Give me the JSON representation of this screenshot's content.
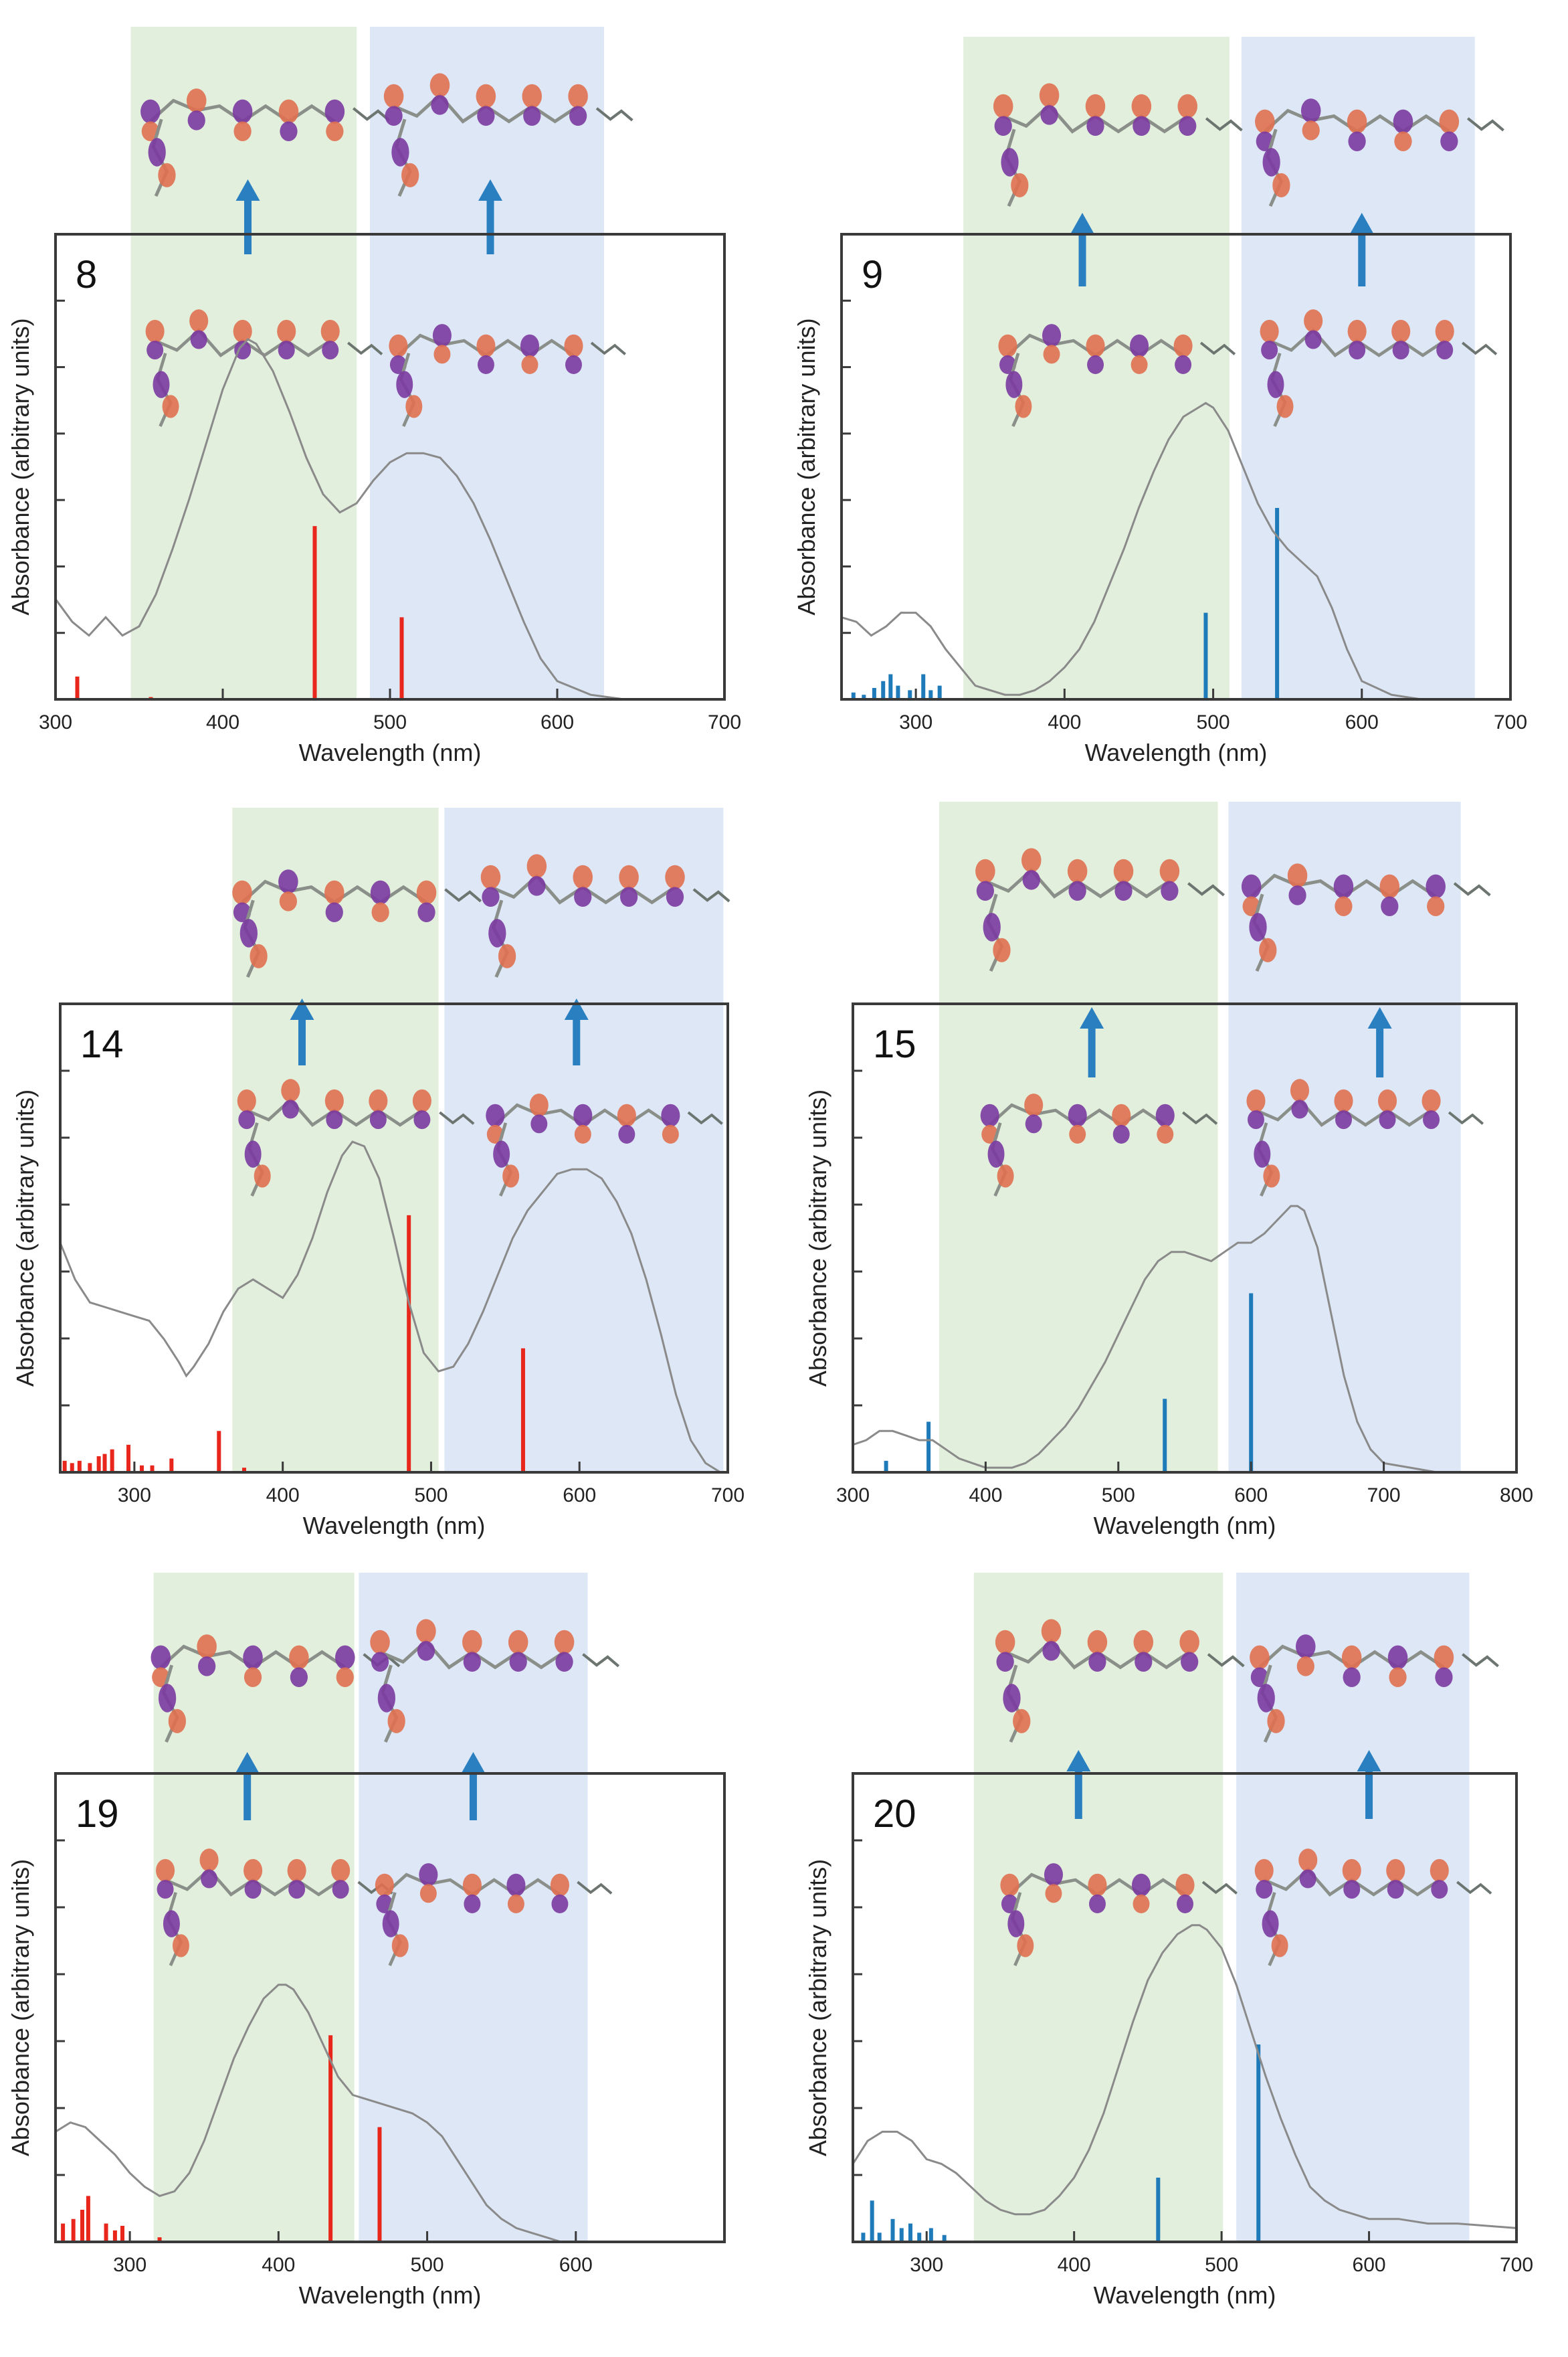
{
  "figure": {
    "description_name": "absorption-spectra-figure"
  },
  "colors": {
    "red_sticks": "#e8261c",
    "blue_sticks": "#1e7ab8",
    "curve": "#8a8a8a",
    "green_band": "#e2efdc",
    "blue_band": "#dde7f5",
    "arrow": "#2a7fc1",
    "orbital_orange": "#e07050",
    "orbital_purple": "#7a3aa0"
  },
  "chart_data": [
    {
      "type": "line",
      "label": "8",
      "xlabel": "Wavelength (nm)",
      "ylabel": "Absorbance (arbitrary units)",
      "xlim": [
        300,
        700
      ],
      "ylim": [
        0,
        1
      ],
      "xticks": [
        "300",
        "400",
        "500",
        "600",
        "700"
      ],
      "xtick_values": [
        300,
        400,
        500,
        600,
        700
      ],
      "stick_color": "red",
      "bands": [
        {
          "name": "green",
          "x0": 345,
          "x1": 480
        },
        {
          "name": "blue",
          "x0": 488,
          "x1": 628
        }
      ],
      "arrows": [
        415,
        560
      ],
      "curve": {
        "x": [
          300,
          310,
          320,
          330,
          340,
          350,
          360,
          370,
          380,
          390,
          400,
          410,
          415,
          420,
          430,
          440,
          450,
          460,
          470,
          480,
          490,
          500,
          510,
          520,
          530,
          540,
          550,
          560,
          570,
          580,
          590,
          600,
          620,
          640,
          660,
          680,
          700
        ],
        "y": [
          0.22,
          0.17,
          0.14,
          0.18,
          0.14,
          0.16,
          0.23,
          0.33,
          0.44,
          0.56,
          0.68,
          0.77,
          0.79,
          0.78,
          0.72,
          0.63,
          0.53,
          0.45,
          0.41,
          0.43,
          0.48,
          0.52,
          0.54,
          0.54,
          0.53,
          0.49,
          0.43,
          0.35,
          0.26,
          0.17,
          0.09,
          0.04,
          0.01,
          0.0,
          0.0,
          0.0,
          0.0
        ]
      },
      "sticks": [
        {
          "x": 313,
          "y": 0.05
        },
        {
          "x": 357,
          "y": 0.005
        },
        {
          "x": 455,
          "y": 0.38
        },
        {
          "x": 507,
          "y": 0.18
        }
      ]
    },
    {
      "type": "line",
      "label": "9",
      "xlabel": "Wavelength (nm)",
      "ylabel": "Absorbance (arbitrary units)",
      "xlim": [
        250,
        700
      ],
      "ylim": [
        0,
        1
      ],
      "xticks": [
        "300",
        "400",
        "500",
        "600",
        "700"
      ],
      "xtick_values": [
        300,
        400,
        500,
        600,
        700
      ],
      "stick_color": "blue",
      "bands": [
        {
          "name": "green",
          "x0": 332,
          "x1": 511
        },
        {
          "name": "blue",
          "x0": 519,
          "x1": 676
        }
      ],
      "arrows": [
        412,
        600
      ],
      "curve": {
        "x": [
          250,
          260,
          270,
          280,
          290,
          300,
          310,
          320,
          330,
          340,
          350,
          360,
          370,
          380,
          390,
          400,
          410,
          420,
          430,
          440,
          450,
          460,
          470,
          480,
          490,
          495,
          500,
          510,
          520,
          530,
          540,
          550,
          560,
          570,
          580,
          590,
          600,
          620,
          640,
          660,
          700
        ],
        "y": [
          0.18,
          0.17,
          0.14,
          0.16,
          0.19,
          0.19,
          0.16,
          0.11,
          0.07,
          0.03,
          0.02,
          0.01,
          0.01,
          0.02,
          0.04,
          0.07,
          0.11,
          0.17,
          0.25,
          0.33,
          0.42,
          0.5,
          0.57,
          0.62,
          0.64,
          0.65,
          0.64,
          0.59,
          0.51,
          0.43,
          0.37,
          0.33,
          0.3,
          0.27,
          0.2,
          0.11,
          0.04,
          0.01,
          0.0,
          0.0,
          0.0
        ]
      },
      "sticks": [
        {
          "x": 258,
          "y": 0.015
        },
        {
          "x": 265,
          "y": 0.01
        },
        {
          "x": 272,
          "y": 0.025
        },
        {
          "x": 278,
          "y": 0.04
        },
        {
          "x": 283,
          "y": 0.055
        },
        {
          "x": 288,
          "y": 0.03
        },
        {
          "x": 296,
          "y": 0.02
        },
        {
          "x": 305,
          "y": 0.055
        },
        {
          "x": 310,
          "y": 0.02
        },
        {
          "x": 316,
          "y": 0.03
        },
        {
          "x": 495,
          "y": 0.19
        },
        {
          "x": 543,
          "y": 0.42
        }
      ]
    },
    {
      "type": "line",
      "label": "14",
      "xlabel": "Wavelength (nm)",
      "ylabel": "Absorbance (arbitrary units)",
      "xlim": [
        250,
        700
      ],
      "ylim": [
        0,
        1
      ],
      "xticks": [
        "300",
        "400",
        "500",
        "600",
        "700"
      ],
      "xtick_values": [
        300,
        400,
        500,
        600,
        700
      ],
      "stick_color": "red",
      "bands": [
        {
          "name": "green",
          "x0": 366,
          "x1": 505
        },
        {
          "name": "blue",
          "x0": 509,
          "x1": 697
        }
      ],
      "arrows": [
        413,
        598
      ],
      "curve": {
        "x": [
          250,
          260,
          270,
          280,
          290,
          300,
          310,
          320,
          330,
          335,
          340,
          350,
          360,
          370,
          380,
          390,
          400,
          410,
          420,
          430,
          440,
          447,
          455,
          465,
          475,
          485,
          495,
          505,
          515,
          525,
          535,
          545,
          555,
          565,
          575,
          585,
          595,
          605,
          615,
          625,
          635,
          645,
          655,
          665,
          675,
          685,
          695,
          700
        ],
        "y": [
          0.5,
          0.42,
          0.37,
          0.36,
          0.35,
          0.34,
          0.33,
          0.29,
          0.24,
          0.21,
          0.23,
          0.28,
          0.35,
          0.4,
          0.42,
          0.4,
          0.38,
          0.43,
          0.51,
          0.61,
          0.69,
          0.72,
          0.71,
          0.64,
          0.51,
          0.37,
          0.26,
          0.22,
          0.23,
          0.28,
          0.35,
          0.43,
          0.51,
          0.57,
          0.61,
          0.65,
          0.66,
          0.66,
          0.64,
          0.59,
          0.52,
          0.42,
          0.3,
          0.17,
          0.07,
          0.02,
          0.0,
          0.0
        ]
      },
      "sticks": [
        {
          "x": 253,
          "y": 0.025
        },
        {
          "x": 258,
          "y": 0.02
        },
        {
          "x": 263,
          "y": 0.025
        },
        {
          "x": 270,
          "y": 0.02
        },
        {
          "x": 276,
          "y": 0.035
        },
        {
          "x": 280,
          "y": 0.04
        },
        {
          "x": 285,
          "y": 0.05
        },
        {
          "x": 296,
          "y": 0.06
        },
        {
          "x": 305,
          "y": 0.015
        },
        {
          "x": 312,
          "y": 0.015
        },
        {
          "x": 325,
          "y": 0.03
        },
        {
          "x": 357,
          "y": 0.09
        },
        {
          "x": 374,
          "y": 0.01
        },
        {
          "x": 485,
          "y": 0.56
        },
        {
          "x": 562,
          "y": 0.27
        }
      ]
    },
    {
      "type": "line",
      "label": "15",
      "xlabel": "Wavelength (nm)",
      "ylabel": "Absorbance (arbitrary units)",
      "xlim": [
        300,
        800
      ],
      "ylim": [
        0,
        1
      ],
      "xticks": [
        "300",
        "400",
        "500",
        "600",
        "700",
        "800"
      ],
      "xtick_values": [
        300,
        400,
        500,
        600,
        700,
        800
      ],
      "stick_color": "blue",
      "bands": [
        {
          "name": "green",
          "x0": 365,
          "x1": 575
        },
        {
          "name": "blue",
          "x0": 583,
          "x1": 758
        }
      ],
      "arrows": [
        480,
        697
      ],
      "curve": {
        "x": [
          300,
          310,
          320,
          330,
          340,
          350,
          360,
          370,
          380,
          390,
          400,
          410,
          420,
          430,
          440,
          450,
          460,
          470,
          480,
          490,
          500,
          510,
          520,
          530,
          540,
          550,
          560,
          570,
          580,
          590,
          600,
          610,
          620,
          630,
          635,
          640,
          650,
          660,
          670,
          680,
          690,
          700,
          720,
          740,
          760,
          780,
          800
        ],
        "y": [
          0.06,
          0.07,
          0.09,
          0.09,
          0.08,
          0.07,
          0.07,
          0.05,
          0.03,
          0.02,
          0.01,
          0.01,
          0.01,
          0.02,
          0.04,
          0.07,
          0.1,
          0.14,
          0.19,
          0.24,
          0.3,
          0.36,
          0.42,
          0.46,
          0.48,
          0.48,
          0.47,
          0.46,
          0.48,
          0.5,
          0.5,
          0.52,
          0.55,
          0.58,
          0.58,
          0.57,
          0.49,
          0.35,
          0.21,
          0.11,
          0.05,
          0.02,
          0.01,
          0.0,
          0.0,
          0.0,
          0.0
        ]
      },
      "sticks": [
        {
          "x": 325,
          "y": 0.025
        },
        {
          "x": 357,
          "y": 0.11
        },
        {
          "x": 535,
          "y": 0.16
        },
        {
          "x": 600,
          "y": 0.39
        }
      ]
    },
    {
      "type": "line",
      "label": "19",
      "xlabel": "Wavelength (nm)",
      "ylabel": "Absorbance (arbitrary units)",
      "xlim": [
        250,
        700
      ],
      "ylim": [
        0,
        1
      ],
      "xticks": [
        "300",
        "400",
        "500",
        "600"
      ],
      "xtick_values": [
        300,
        400,
        500,
        600
      ],
      "stick_color": "red",
      "bands": [
        {
          "name": "green",
          "x0": 316,
          "x1": 451
        },
        {
          "name": "blue",
          "x0": 454,
          "x1": 608
        }
      ],
      "arrows": [
        379,
        531
      ],
      "curve": {
        "x": [
          250,
          260,
          270,
          280,
          290,
          300,
          310,
          320,
          330,
          340,
          350,
          360,
          370,
          380,
          390,
          400,
          405,
          410,
          420,
          430,
          440,
          450,
          460,
          470,
          480,
          490,
          500,
          510,
          520,
          530,
          540,
          550,
          560,
          570,
          580,
          590,
          600,
          620,
          640,
          660,
          680,
          700
        ],
        "y": [
          0.24,
          0.26,
          0.25,
          0.22,
          0.19,
          0.15,
          0.12,
          0.1,
          0.11,
          0.15,
          0.22,
          0.31,
          0.4,
          0.47,
          0.53,
          0.56,
          0.56,
          0.55,
          0.5,
          0.43,
          0.36,
          0.32,
          0.31,
          0.3,
          0.29,
          0.28,
          0.26,
          0.23,
          0.18,
          0.13,
          0.08,
          0.05,
          0.03,
          0.02,
          0.01,
          0.0,
          0.0,
          0.0,
          0.0,
          0.0,
          0.0,
          0.0
        ]
      },
      "sticks": [
        {
          "x": 255,
          "y": 0.04
        },
        {
          "x": 262,
          "y": 0.05
        },
        {
          "x": 268,
          "y": 0.07
        },
        {
          "x": 272,
          "y": 0.1
        },
        {
          "x": 284,
          "y": 0.04
        },
        {
          "x": 290,
          "y": 0.025
        },
        {
          "x": 295,
          "y": 0.035
        },
        {
          "x": 320,
          "y": 0.01
        },
        {
          "x": 435,
          "y": 0.45
        },
        {
          "x": 468,
          "y": 0.25
        }
      ]
    },
    {
      "type": "line",
      "label": "20",
      "xlabel": "Wavelength (nm)",
      "ylabel": "Absorbance (arbitrary units)",
      "xlim": [
        250,
        700
      ],
      "ylim": [
        0,
        1
      ],
      "xticks": [
        "300",
        "400",
        "500",
        "600",
        "700"
      ],
      "xtick_values": [
        300,
        400,
        500,
        600,
        700
      ],
      "stick_color": "blue",
      "bands": [
        {
          "name": "green",
          "x0": 332,
          "x1": 501
        },
        {
          "name": "blue",
          "x0": 510,
          "x1": 668
        }
      ],
      "arrows": [
        403,
        600
      ],
      "curve": {
        "x": [
          250,
          260,
          270,
          280,
          290,
          300,
          310,
          320,
          330,
          340,
          350,
          360,
          370,
          380,
          390,
          400,
          410,
          420,
          430,
          440,
          450,
          460,
          470,
          480,
          485,
          490,
          500,
          510,
          520,
          530,
          540,
          550,
          560,
          570,
          580,
          590,
          600,
          620,
          640,
          660,
          700
        ],
        "y": [
          0.17,
          0.22,
          0.24,
          0.24,
          0.22,
          0.18,
          0.17,
          0.15,
          0.12,
          0.09,
          0.07,
          0.06,
          0.06,
          0.07,
          0.1,
          0.14,
          0.2,
          0.28,
          0.38,
          0.48,
          0.57,
          0.63,
          0.67,
          0.69,
          0.69,
          0.68,
          0.64,
          0.56,
          0.46,
          0.36,
          0.27,
          0.19,
          0.12,
          0.09,
          0.07,
          0.06,
          0.05,
          0.05,
          0.04,
          0.04,
          0.03
        ]
      },
      "sticks": [
        {
          "x": 257,
          "y": 0.02
        },
        {
          "x": 263,
          "y": 0.09
        },
        {
          "x": 268,
          "y": 0.02
        },
        {
          "x": 277,
          "y": 0.05
        },
        {
          "x": 283,
          "y": 0.03
        },
        {
          "x": 289,
          "y": 0.04
        },
        {
          "x": 295,
          "y": 0.02
        },
        {
          "x": 303,
          "y": 0.03
        },
        {
          "x": 312,
          "y": 0.015
        },
        {
          "x": 457,
          "y": 0.14
        },
        {
          "x": 525,
          "y": 0.43
        }
      ]
    }
  ]
}
